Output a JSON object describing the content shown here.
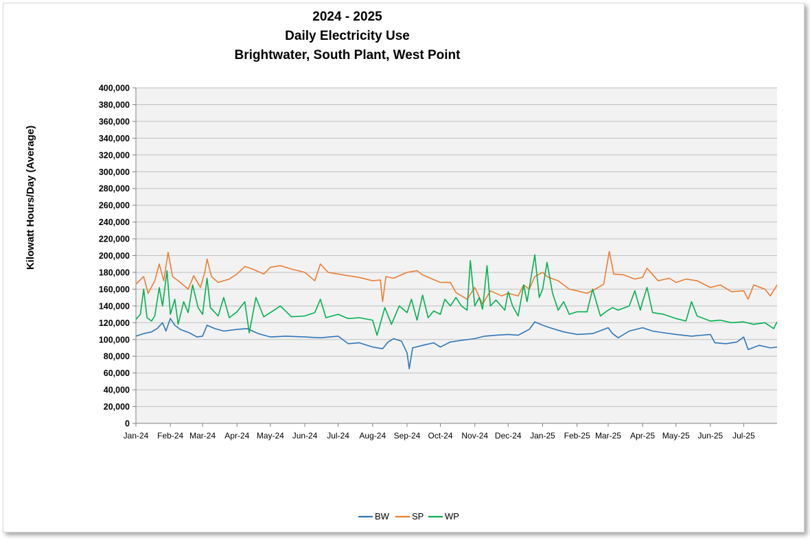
{
  "chart_data": {
    "type": "line",
    "title_lines": [
      "2024 - 2025",
      "Daily Electricity Use",
      "Brightwater, South Plant, West Point"
    ],
    "ylabel": "Kilowatt Hours/Day (Average)",
    "xlabel": "",
    "ylim": [
      0,
      400000
    ],
    "ytick_step": 20000,
    "yticks": [
      "0",
      "20,000",
      "40,000",
      "60,000",
      "80,000",
      "100,000",
      "120,000",
      "140,000",
      "160,000",
      "180,000",
      "200,000",
      "220,000",
      "240,000",
      "260,000",
      "280,000",
      "300,000",
      "320,000",
      "340,000",
      "360,000",
      "380,000",
      "400,000"
    ],
    "x_range": [
      "2024-01-01",
      "2025-07-31"
    ],
    "x_ticks": [
      {
        "date": "2024-01-01",
        "label": "Jan-24"
      },
      {
        "date": "2024-02-01",
        "label": "Feb-24"
      },
      {
        "date": "2024-03-01",
        "label": "Mar-24"
      },
      {
        "date": "2024-04-01",
        "label": "Apr-24"
      },
      {
        "date": "2024-05-01",
        "label": "May-24"
      },
      {
        "date": "2024-06-01",
        "label": "Jun-24"
      },
      {
        "date": "2024-07-01",
        "label": "Jul-24"
      },
      {
        "date": "2024-08-01",
        "label": "Aug-24"
      },
      {
        "date": "2024-09-01",
        "label": "Sep-24"
      },
      {
        "date": "2024-10-01",
        "label": "Oct-24"
      },
      {
        "date": "2024-11-01",
        "label": "Nov-24"
      },
      {
        "date": "2024-12-01",
        "label": "Dec-24"
      },
      {
        "date": "2025-01-01",
        "label": "Jan-25"
      },
      {
        "date": "2025-02-01",
        "label": "Feb-25"
      },
      {
        "date": "2025-03-01",
        "label": "Mar-25"
      },
      {
        "date": "2025-04-01",
        "label": "Apr-25"
      },
      {
        "date": "2025-05-01",
        "label": "May-25"
      },
      {
        "date": "2025-06-01",
        "label": "Jun-25"
      },
      {
        "date": "2025-07-01",
        "label": "Jul-25"
      }
    ],
    "grid": true,
    "legend_position": "bottom-center",
    "series": [
      {
        "name": "BW",
        "color": "#2e75b6",
        "points": [
          [
            "2024-01-01",
            104000
          ],
          [
            "2024-01-08",
            107000
          ],
          [
            "2024-01-15",
            109000
          ],
          [
            "2024-01-20",
            113000
          ],
          [
            "2024-01-25",
            120000
          ],
          [
            "2024-01-28",
            110000
          ],
          [
            "2024-02-01",
            125000
          ],
          [
            "2024-02-05",
            117000
          ],
          [
            "2024-02-10",
            112000
          ],
          [
            "2024-02-18",
            108000
          ],
          [
            "2024-02-25",
            103000
          ],
          [
            "2024-03-01",
            104000
          ],
          [
            "2024-03-05",
            117000
          ],
          [
            "2024-03-12",
            113000
          ],
          [
            "2024-03-20",
            110000
          ],
          [
            "2024-04-01",
            112000
          ],
          [
            "2024-04-10",
            113000
          ],
          [
            "2024-04-20",
            107000
          ],
          [
            "2024-05-01",
            103000
          ],
          [
            "2024-05-15",
            104000
          ],
          [
            "2024-06-01",
            103000
          ],
          [
            "2024-06-15",
            102000
          ],
          [
            "2024-07-01",
            104000
          ],
          [
            "2024-07-10",
            95000
          ],
          [
            "2024-07-20",
            96000
          ],
          [
            "2024-08-01",
            91000
          ],
          [
            "2024-08-10",
            89000
          ],
          [
            "2024-08-15",
            97000
          ],
          [
            "2024-08-20",
            101000
          ],
          [
            "2024-08-27",
            98000
          ],
          [
            "2024-09-01",
            84000
          ],
          [
            "2024-09-03",
            65000
          ],
          [
            "2024-09-06",
            90000
          ],
          [
            "2024-09-15",
            93000
          ],
          [
            "2024-09-25",
            96000
          ],
          [
            "2024-10-01",
            91000
          ],
          [
            "2024-10-10",
            97000
          ],
          [
            "2024-10-20",
            99000
          ],
          [
            "2024-11-01",
            101000
          ],
          [
            "2024-11-10",
            104000
          ],
          [
            "2024-11-20",
            105000
          ],
          [
            "2024-12-01",
            106000
          ],
          [
            "2024-12-10",
            105000
          ],
          [
            "2024-12-20",
            112000
          ],
          [
            "2024-12-25",
            121000
          ],
          [
            "2025-01-01",
            117000
          ],
          [
            "2025-01-10",
            113000
          ],
          [
            "2025-01-20",
            109000
          ],
          [
            "2025-02-01",
            106000
          ],
          [
            "2025-02-15",
            107000
          ],
          [
            "2025-03-01",
            114000
          ],
          [
            "2025-03-05",
            107000
          ],
          [
            "2025-03-10",
            102000
          ],
          [
            "2025-03-20",
            110000
          ],
          [
            "2025-04-01",
            114000
          ],
          [
            "2025-04-10",
            110000
          ],
          [
            "2025-04-20",
            108000
          ],
          [
            "2025-05-01",
            106000
          ],
          [
            "2025-05-15",
            104000
          ],
          [
            "2025-06-01",
            106000
          ],
          [
            "2025-06-05",
            96000
          ],
          [
            "2025-06-15",
            95000
          ],
          [
            "2025-06-25",
            97000
          ],
          [
            "2025-07-01",
            103000
          ],
          [
            "2025-07-05",
            88000
          ],
          [
            "2025-07-15",
            93000
          ],
          [
            "2025-07-25",
            90000
          ],
          [
            "2025-07-31",
            91000
          ]
        ]
      },
      {
        "name": "SP",
        "color": "#ed7d31",
        "points": [
          [
            "2024-01-01",
            166000
          ],
          [
            "2024-01-08",
            175000
          ],
          [
            "2024-01-12",
            155000
          ],
          [
            "2024-01-18",
            170000
          ],
          [
            "2024-01-22",
            190000
          ],
          [
            "2024-01-26",
            170000
          ],
          [
            "2024-01-30",
            204000
          ],
          [
            "2024-02-03",
            175000
          ],
          [
            "2024-02-10",
            168000
          ],
          [
            "2024-02-17",
            160000
          ],
          [
            "2024-02-22",
            176000
          ],
          [
            "2024-02-28",
            162000
          ],
          [
            "2024-03-03",
            180000
          ],
          [
            "2024-03-05",
            196000
          ],
          [
            "2024-03-09",
            175000
          ],
          [
            "2024-03-15",
            168000
          ],
          [
            "2024-03-25",
            172000
          ],
          [
            "2024-04-01",
            178000
          ],
          [
            "2024-04-08",
            187000
          ],
          [
            "2024-04-15",
            184000
          ],
          [
            "2024-04-25",
            178000
          ],
          [
            "2024-05-01",
            186000
          ],
          [
            "2024-05-10",
            188000
          ],
          [
            "2024-05-20",
            184000
          ],
          [
            "2024-06-01",
            180000
          ],
          [
            "2024-06-10",
            170000
          ],
          [
            "2024-06-15",
            190000
          ],
          [
            "2024-06-22",
            180000
          ],
          [
            "2024-07-01",
            178000
          ],
          [
            "2024-07-10",
            176000
          ],
          [
            "2024-07-20",
            174000
          ],
          [
            "2024-08-01",
            170000
          ],
          [
            "2024-08-08",
            171000
          ],
          [
            "2024-08-10",
            145000
          ],
          [
            "2024-08-13",
            175000
          ],
          [
            "2024-08-20",
            173000
          ],
          [
            "2024-09-01",
            180000
          ],
          [
            "2024-09-10",
            182000
          ],
          [
            "2024-09-15",
            177000
          ],
          [
            "2024-10-01",
            168000
          ],
          [
            "2024-10-10",
            168000
          ],
          [
            "2024-10-15",
            156000
          ],
          [
            "2024-10-25",
            148000
          ],
          [
            "2024-11-01",
            162000
          ],
          [
            "2024-11-08",
            142000
          ],
          [
            "2024-11-15",
            158000
          ],
          [
            "2024-11-25",
            152000
          ],
          [
            "2024-12-01",
            155000
          ],
          [
            "2024-12-10",
            152000
          ],
          [
            "2024-12-15",
            165000
          ],
          [
            "2024-12-20",
            160000
          ],
          [
            "2024-12-25",
            175000
          ],
          [
            "2025-01-01",
            180000
          ],
          [
            "2025-01-05",
            175000
          ],
          [
            "2025-01-15",
            170000
          ],
          [
            "2025-01-25",
            160000
          ],
          [
            "2025-02-01",
            158000
          ],
          [
            "2025-02-10",
            155000
          ],
          [
            "2025-02-20",
            162000
          ],
          [
            "2025-02-25",
            166000
          ],
          [
            "2025-03-02",
            205000
          ],
          [
            "2025-03-06",
            178000
          ],
          [
            "2025-03-15",
            177000
          ],
          [
            "2025-03-25",
            172000
          ],
          [
            "2025-04-01",
            174000
          ],
          [
            "2025-04-05",
            185000
          ],
          [
            "2025-04-15",
            170000
          ],
          [
            "2025-04-25",
            173000
          ],
          [
            "2025-05-01",
            168000
          ],
          [
            "2025-05-10",
            172000
          ],
          [
            "2025-05-20",
            170000
          ],
          [
            "2025-06-01",
            162000
          ],
          [
            "2025-06-10",
            165000
          ],
          [
            "2025-06-20",
            157000
          ],
          [
            "2025-07-01",
            158000
          ],
          [
            "2025-07-05",
            148000
          ],
          [
            "2025-07-10",
            165000
          ],
          [
            "2025-07-20",
            160000
          ],
          [
            "2025-07-25",
            152000
          ],
          [
            "2025-07-31",
            165000
          ]
        ]
      },
      {
        "name": "WP",
        "color": "#00b050",
        "points": [
          [
            "2024-01-01",
            124000
          ],
          [
            "2024-01-05",
            130000
          ],
          [
            "2024-01-08",
            160000
          ],
          [
            "2024-01-11",
            126000
          ],
          [
            "2024-01-15",
            122000
          ],
          [
            "2024-01-18",
            128000
          ],
          [
            "2024-01-22",
            162000
          ],
          [
            "2024-01-25",
            140000
          ],
          [
            "2024-01-29",
            182000
          ],
          [
            "2024-02-01",
            130000
          ],
          [
            "2024-02-05",
            148000
          ],
          [
            "2024-02-08",
            118000
          ],
          [
            "2024-02-13",
            145000
          ],
          [
            "2024-02-17",
            132000
          ],
          [
            "2024-02-21",
            165000
          ],
          [
            "2024-02-26",
            138000
          ],
          [
            "2024-03-01",
            130000
          ],
          [
            "2024-03-05",
            173000
          ],
          [
            "2024-03-08",
            138000
          ],
          [
            "2024-03-15",
            128000
          ],
          [
            "2024-03-20",
            150000
          ],
          [
            "2024-03-25",
            126000
          ],
          [
            "2024-04-01",
            133000
          ],
          [
            "2024-04-08",
            145000
          ],
          [
            "2024-04-12",
            108000
          ],
          [
            "2024-04-18",
            150000
          ],
          [
            "2024-04-25",
            127000
          ],
          [
            "2024-05-01",
            132000
          ],
          [
            "2024-05-10",
            140000
          ],
          [
            "2024-05-20",
            127000
          ],
          [
            "2024-06-01",
            128000
          ],
          [
            "2024-06-10",
            132000
          ],
          [
            "2024-06-15",
            148000
          ],
          [
            "2024-06-20",
            126000
          ],
          [
            "2024-07-01",
            130000
          ],
          [
            "2024-07-10",
            125000
          ],
          [
            "2024-07-20",
            126000
          ],
          [
            "2024-08-01",
            123000
          ],
          [
            "2024-08-05",
            105000
          ],
          [
            "2024-08-12",
            138000
          ],
          [
            "2024-08-18",
            118000
          ],
          [
            "2024-08-25",
            140000
          ],
          [
            "2024-09-01",
            132000
          ],
          [
            "2024-09-05",
            148000
          ],
          [
            "2024-09-10",
            123000
          ],
          [
            "2024-09-15",
            153000
          ],
          [
            "2024-09-20",
            126000
          ],
          [
            "2024-09-25",
            134000
          ],
          [
            "2024-10-01",
            130000
          ],
          [
            "2024-10-05",
            148000
          ],
          [
            "2024-10-10",
            140000
          ],
          [
            "2024-10-15",
            150000
          ],
          [
            "2024-10-20",
            140000
          ],
          [
            "2024-10-25",
            135000
          ],
          [
            "2024-10-28",
            194000
          ],
          [
            "2024-11-01",
            140000
          ],
          [
            "2024-11-05",
            150000
          ],
          [
            "2024-11-08",
            136000
          ],
          [
            "2024-11-12",
            188000
          ],
          [
            "2024-11-15",
            140000
          ],
          [
            "2024-11-20",
            147000
          ],
          [
            "2024-11-28",
            135000
          ],
          [
            "2024-12-01",
            157000
          ],
          [
            "2024-12-05",
            140000
          ],
          [
            "2024-12-10",
            128000
          ],
          [
            "2024-12-15",
            165000
          ],
          [
            "2024-12-18",
            145000
          ],
          [
            "2024-12-25",
            201000
          ],
          [
            "2024-12-29",
            150000
          ],
          [
            "2025-01-01",
            160000
          ],
          [
            "2025-01-05",
            192000
          ],
          [
            "2025-01-10",
            155000
          ],
          [
            "2025-01-15",
            135000
          ],
          [
            "2025-01-20",
            145000
          ],
          [
            "2025-01-25",
            130000
          ],
          [
            "2025-02-01",
            133000
          ],
          [
            "2025-02-10",
            133000
          ],
          [
            "2025-02-15",
            160000
          ],
          [
            "2025-02-22",
            128000
          ],
          [
            "2025-02-28",
            134000
          ],
          [
            "2025-03-05",
            138000
          ],
          [
            "2025-03-10",
            135000
          ],
          [
            "2025-03-20",
            140000
          ],
          [
            "2025-03-25",
            158000
          ],
          [
            "2025-03-30",
            135000
          ],
          [
            "2025-04-01",
            145000
          ],
          [
            "2025-04-05",
            162000
          ],
          [
            "2025-04-10",
            132000
          ],
          [
            "2025-04-20",
            130000
          ],
          [
            "2025-05-01",
            125000
          ],
          [
            "2025-05-10",
            122000
          ],
          [
            "2025-05-15",
            145000
          ],
          [
            "2025-05-20",
            128000
          ],
          [
            "2025-06-01",
            122000
          ],
          [
            "2025-06-10",
            123000
          ],
          [
            "2025-06-20",
            120000
          ],
          [
            "2025-07-01",
            121000
          ],
          [
            "2025-07-10",
            118000
          ],
          [
            "2025-07-20",
            120000
          ],
          [
            "2025-07-28",
            113000
          ],
          [
            "2025-07-31",
            121000
          ]
        ]
      }
    ]
  }
}
